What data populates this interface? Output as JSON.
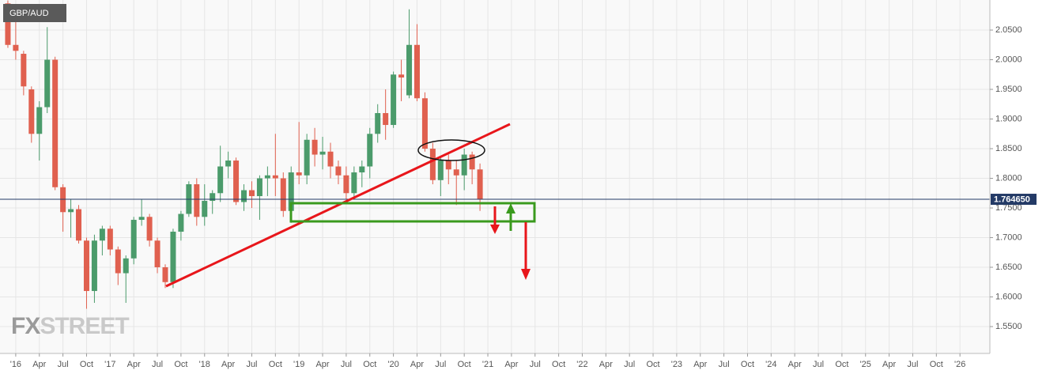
{
  "chart_data": {
    "type": "candlestick",
    "title": "GBP/AUD",
    "watermark_a": "FX",
    "watermark_b": "STREET",
    "x": [
      -1,
      0,
      1,
      2,
      3,
      4,
      5,
      6,
      7,
      8,
      9,
      10,
      11,
      12,
      13,
      14,
      15,
      16,
      17,
      18,
      19,
      20,
      21,
      22,
      23,
      24,
      25,
      26,
      27,
      28,
      29,
      30,
      31,
      32,
      33,
      34,
      35,
      36,
      37,
      38,
      39,
      40,
      41,
      42,
      43,
      44,
      45,
      46,
      47,
      48,
      49,
      50,
      51,
      52,
      53,
      54,
      55,
      56,
      57,
      58,
      59
    ],
    "open": [
      2.095,
      2.025,
      2.01,
      1.95,
      1.875,
      1.92,
      2.0,
      1.785,
      1.743,
      1.748,
      1.695,
      1.61,
      1.695,
      1.715,
      1.68,
      1.64,
      1.665,
      1.73,
      1.735,
      1.695,
      1.65,
      1.625,
      1.71,
      1.74,
      1.79,
      1.735,
      1.762,
      1.775,
      1.82,
      1.83,
      1.76,
      1.78,
      1.77,
      1.8,
      1.805,
      1.8,
      1.745,
      1.81,
      1.805,
      1.865,
      1.84,
      1.845,
      1.82,
      1.805,
      1.775,
      1.81,
      1.82,
      1.875,
      1.91,
      1.89,
      1.975,
      1.94,
      2.025,
      1.935,
      1.85,
      1.797,
      1.83,
      1.815,
      1.805,
      1.84,
      1.815
    ],
    "high": [
      2.1,
      2.09,
      2.015,
      1.955,
      1.93,
      2.055,
      2.005,
      1.79,
      1.765,
      1.755,
      1.7,
      1.705,
      1.72,
      1.72,
      1.685,
      1.67,
      1.735,
      1.765,
      1.74,
      1.7,
      1.655,
      1.715,
      1.745,
      1.795,
      1.8,
      1.79,
      1.78,
      1.855,
      1.845,
      1.835,
      1.79,
      1.795,
      1.805,
      1.82,
      1.875,
      1.81,
      1.82,
      1.895,
      1.875,
      1.885,
      1.87,
      1.86,
      1.83,
      1.82,
      1.82,
      1.83,
      1.885,
      1.925,
      1.95,
      1.98,
      2.0,
      2.085,
      2.06,
      1.945,
      1.86,
      1.835,
      1.84,
      1.83,
      1.85,
      1.845,
      1.825
    ],
    "low": [
      2.02,
      2.0,
      1.94,
      1.86,
      1.83,
      1.91,
      1.78,
      1.71,
      1.7,
      1.69,
      1.58,
      1.59,
      1.67,
      1.67,
      1.62,
      1.59,
      1.655,
      1.72,
      1.685,
      1.64,
      1.615,
      1.615,
      1.695,
      1.735,
      1.72,
      1.72,
      1.74,
      1.76,
      1.8,
      1.755,
      1.745,
      1.75,
      1.73,
      1.77,
      1.77,
      1.735,
      1.725,
      1.79,
      1.79,
      1.82,
      1.815,
      1.8,
      1.79,
      1.765,
      1.765,
      1.785,
      1.8,
      1.86,
      1.865,
      1.885,
      1.93,
      1.935,
      1.93,
      1.845,
      1.79,
      1.77,
      1.79,
      1.755,
      1.78,
      1.79,
      1.745
    ],
    "close": [
      2.025,
      2.015,
      1.955,
      1.875,
      1.92,
      2.0,
      1.785,
      1.743,
      1.748,
      1.695,
      1.61,
      1.695,
      1.715,
      1.68,
      1.64,
      1.665,
      1.73,
      1.735,
      1.695,
      1.65,
      1.625,
      1.71,
      1.74,
      1.79,
      1.735,
      1.762,
      1.775,
      1.82,
      1.83,
      1.76,
      1.78,
      1.77,
      1.8,
      1.805,
      1.8,
      1.745,
      1.81,
      1.805,
      1.865,
      1.84,
      1.845,
      1.82,
      1.805,
      1.775,
      1.81,
      1.82,
      1.875,
      1.91,
      1.89,
      1.975,
      1.97,
      2.025,
      1.935,
      1.85,
      1.797,
      1.83,
      1.815,
      1.805,
      1.84,
      1.815,
      1.7646
    ],
    "up_color": "#4b9b6b",
    "down_color": "#e0604f",
    "current_price": {
      "value": 1.76465,
      "label": "1.764650"
    },
    "current_price_color": "#233a66",
    "grid": true,
    "xlim": [
      -2,
      123.8
    ],
    "xticks": [
      {
        "value": 0,
        "label": "'16"
      },
      {
        "value": 3,
        "label": "Apr"
      },
      {
        "value": 6,
        "label": "Jul"
      },
      {
        "value": 9,
        "label": "Oct"
      },
      {
        "value": 12,
        "label": "'17"
      },
      {
        "value": 15,
        "label": "Apr"
      },
      {
        "value": 18,
        "label": "Jul"
      },
      {
        "value": 21,
        "label": "Oct"
      },
      {
        "value": 24,
        "label": "'18"
      },
      {
        "value": 27,
        "label": "Apr"
      },
      {
        "value": 30,
        "label": "Jul"
      },
      {
        "value": 33,
        "label": "Oct"
      },
      {
        "value": 36,
        "label": "'19"
      },
      {
        "value": 39,
        "label": "Apr"
      },
      {
        "value": 42,
        "label": "Jul"
      },
      {
        "value": 45,
        "label": "Oct"
      },
      {
        "value": 48,
        "label": "'20"
      },
      {
        "value": 51,
        "label": "Apr"
      },
      {
        "value": 54,
        "label": "Jul"
      },
      {
        "value": 57,
        "label": "Oct"
      },
      {
        "value": 60,
        "label": "'21"
      },
      {
        "value": 63,
        "label": "Apr"
      },
      {
        "value": 66,
        "label": "Jul"
      },
      {
        "value": 69,
        "label": "Oct"
      },
      {
        "value": 72,
        "label": "'22"
      },
      {
        "value": 75,
        "label": "Apr"
      },
      {
        "value": 78,
        "label": "Jul"
      },
      {
        "value": 81,
        "label": "Oct"
      },
      {
        "value": 84,
        "label": "'23"
      },
      {
        "value": 87,
        "label": "Apr"
      },
      {
        "value": 90,
        "label": "Jul"
      },
      {
        "value": 93,
        "label": "Oct"
      },
      {
        "value": 96,
        "label": "'24"
      },
      {
        "value": 99,
        "label": "Apr"
      },
      {
        "value": 102,
        "label": "Jul"
      },
      {
        "value": 105,
        "label": "Oct"
      },
      {
        "value": 108,
        "label": "'25"
      },
      {
        "value": 111,
        "label": "Apr"
      },
      {
        "value": 114,
        "label": "Jul"
      },
      {
        "value": 117,
        "label": "Oct"
      },
      {
        "value": 120,
        "label": "'26"
      }
    ],
    "ylim": [
      1.5047,
      2.1007
    ],
    "yticks": [
      {
        "value": 1.55,
        "label": "1.5500"
      },
      {
        "value": 1.6,
        "label": "1.6000"
      },
      {
        "value": 1.65,
        "label": "1.6500"
      },
      {
        "value": 1.7,
        "label": "1.7000"
      },
      {
        "value": 1.75,
        "label": "1.7500"
      },
      {
        "value": 1.8,
        "label": "1.8000"
      },
      {
        "value": 1.85,
        "label": "1.8500"
      },
      {
        "value": 1.9,
        "label": "1.9000"
      },
      {
        "value": 1.95,
        "label": "1.9500"
      },
      {
        "value": 2.0,
        "label": "2.0000"
      },
      {
        "value": 2.05,
        "label": "2.0500"
      }
    ]
  }
}
